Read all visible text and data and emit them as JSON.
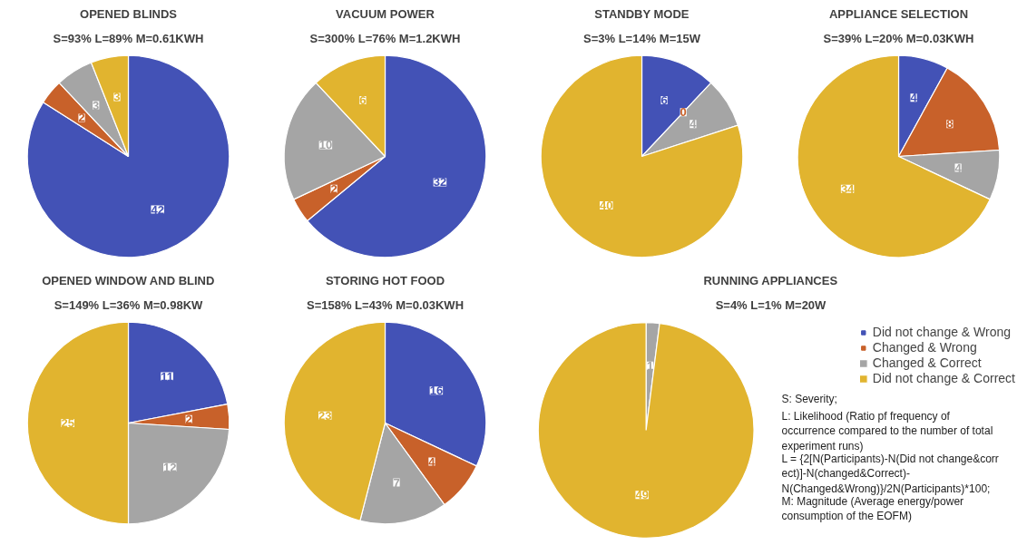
{
  "chart_data": [
    {
      "type": "pie",
      "title": "OPENED BLINDS",
      "subtitle": "S=93% L=89% M=0.61KWH",
      "categories": [
        null,
        null,
        null,
        null
      ],
      "values": [
        42,
        2,
        3,
        3
      ],
      "colors": [
        "#4352b6",
        "#c8612a",
        "#a5a5a5",
        "#e1b42f"
      ],
      "data_labels": true
    },
    {
      "type": "pie",
      "title": "VACUUM POWER",
      "subtitle": "S=300% L=76% M=1.2KWH",
      "categories": [
        null,
        null,
        null,
        null
      ],
      "values": [
        32,
        2,
        10,
        6
      ],
      "colors": [
        "#4352b6",
        "#c8612a",
        "#a5a5a5",
        "#e1b42f"
      ],
      "data_labels": true
    },
    {
      "type": "pie",
      "title": "STANDBY MODE",
      "subtitle": "S=3% L=14% M=15W",
      "categories": [
        null,
        null,
        null,
        null
      ],
      "values": [
        6,
        0,
        4,
        40
      ],
      "colors": [
        "#4352b6",
        "#c8612a",
        "#a5a5a5",
        "#e1b42f"
      ],
      "value_labels": [
        "6",
        "0",
        "4",
        "40"
      ]
    },
    {
      "type": "pie",
      "title": "APPLIANCE SELECTION",
      "subtitle": "S=39% L=20% M=0.03KWH",
      "categories": [
        null,
        null,
        null,
        null
      ],
      "values": [
        4,
        8,
        4,
        34
      ],
      "colors": [
        "#4352b6",
        "#c8612a",
        "#a5a5a5",
        "#e1b42f"
      ],
      "data_labels": true
    },
    {
      "type": "pie",
      "title": "OPENED WINDOW AND BLIND",
      "subtitle": "S=149% L=36% M=0.98KW",
      "categories": [
        null,
        null,
        null,
        null
      ],
      "values": [
        11,
        2,
        12,
        25
      ],
      "colors": [
        "#4352b6",
        "#c8612a",
        "#a5a5a5",
        "#e1b42f"
      ],
      "data_labels": true
    },
    {
      "type": "pie",
      "title": "STORING HOT FOOD",
      "subtitle": "S=158% L=43% M=0.03KWH",
      "categories": [
        null,
        null,
        null,
        null
      ],
      "values": [
        16,
        4,
        7,
        23
      ],
      "colors": [
        "#4352b6",
        "#c8612a",
        "#a5a5a5",
        "#e1b42f"
      ],
      "data_labels": true
    },
    {
      "type": "pie",
      "title": "RUNNING APPLIANCES",
      "subtitle": "S=4% L=1% M=20W",
      "categories": [
        "Did not change & Wrong",
        "Changed & Wrong",
        "Changed & Correct",
        "Did not change & Correct"
      ],
      "values": [
        0,
        0,
        1,
        49
      ],
      "colors": [
        "#4352b6",
        "#c8612a",
        "#a5a5a5",
        "#e1b42f"
      ],
      "value_labels": [
        null,
        null,
        "1",
        "49"
      ],
      "legend": "right",
      "annotations": [
        "S: Severity;",
        "L: Likelihood (Ratio pf frequency of occurrence compared to the number of total experiment runs)",
        "L = {2[N(Participants)-N(Did not change&correct)]-N(changed&Correct)-N(Changed&Wrong)}/2N(Participants)*100;",
        "M: Magnitude (Average energy/power consumption of the EOFM)"
      ]
    }
  ]
}
